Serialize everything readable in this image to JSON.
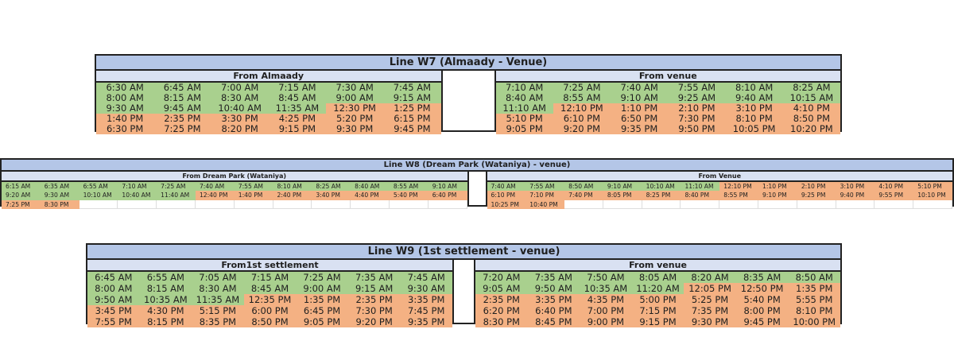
{
  "colors": {
    "am": "#a9d08e",
    "pm": "#f4b183",
    "title_bg": "#b4c6e7",
    "subheader_bg": "#d9e1f2"
  },
  "lines": [
    {
      "id": "w7",
      "title": "Line W7 (Almaady - Venue)",
      "columns": 6,
      "from_left": {
        "label": "From Almaady",
        "rows": [
          [
            "6:30 AM",
            "6:45 AM",
            "7:00 AM",
            "7:15 AM",
            "7:30 AM",
            "7:45 AM"
          ],
          [
            "8:00 AM",
            "8:15 AM",
            "8:30 AM",
            "8:45 AM",
            "9:00 AM",
            "9:15 AM"
          ],
          [
            "9:30 AM",
            "9:45 AM",
            "10:40 AM",
            "11:35 AM",
            "12:30 PM",
            "1:25 PM"
          ],
          [
            "1:40 PM",
            "2:35 PM",
            "3:30 PM",
            "4:25 PM",
            "5:20 PM",
            "6:15 PM"
          ],
          [
            "6:30 PM",
            "7:25 PM",
            "8:20 PM",
            "9:15 PM",
            "9:30 PM",
            "9:45 PM"
          ]
        ]
      },
      "from_right": {
        "label": "From venue",
        "rows": [
          [
            "7:10 AM",
            "7:25 AM",
            "7:40 AM",
            "7:55 AM",
            "8:10 AM",
            "8:25 AM"
          ],
          [
            "8:40 AM",
            "8:55 AM",
            "9:10 AM",
            "9:25 AM",
            "9:40 AM",
            "10:15 AM"
          ],
          [
            "11:10 AM",
            "12:10 PM",
            "1:10 PM",
            "2:10 PM",
            "3:10 PM",
            "4:10 PM"
          ],
          [
            "5:10 PM",
            "6:10 PM",
            "6:50 PM",
            "7:30 PM",
            "8:10 PM",
            "8:50 PM"
          ],
          [
            "9:05 PM",
            "9:20 PM",
            "9:35 PM",
            "9:50 PM",
            "10:05 PM",
            "10:20 PM"
          ]
        ]
      }
    },
    {
      "id": "w8",
      "title": "Line W8 (Dream Park (Wataniya) - venue)",
      "columns": 12,
      "from_left": {
        "label": "From Dream Park (Wataniya)",
        "rows": [
          [
            "6:15 AM",
            "6:35 AM",
            "6:55 AM",
            "7:10 AM",
            "7:25 AM",
            "7:40 AM",
            "7:55 AM",
            "8:10 AM",
            "8:25 AM",
            "8:40 AM",
            "8:55 AM",
            "9:10 AM"
          ],
          [
            "9:20 AM",
            "9:30 AM",
            "10:10 AM",
            "10:40 AM",
            "11:40 AM",
            "12:40 PM",
            "1:40 PM",
            "2:40 PM",
            "3:40 PM",
            "4:40 PM",
            "5:40 PM",
            "6:40 PM"
          ],
          [
            "7:25 PM",
            "8:30 PM",
            "",
            "",
            "",
            "",
            "",
            "",
            "",
            "",
            "",
            ""
          ]
        ]
      },
      "from_right": {
        "label": "From Venue",
        "rows": [
          [
            "7:40 AM",
            "7:55 AM",
            "8:50 AM",
            "9:10 AM",
            "10:10 AM",
            "11:10 AM",
            "12:10 PM",
            "1:10 PM",
            "2:10 PM",
            "3:10 PM",
            "4:10 PM",
            "5:10 PM"
          ],
          [
            "6:10 PM",
            "7:10 PM",
            "7:40 PM",
            "8:05 PM",
            "8:25 PM",
            "8:40 PM",
            "8:55 PM",
            "9:10 PM",
            "9:25 PM",
            "9:40 PM",
            "9:55 PM",
            "10:10 PM"
          ],
          [
            "10:25 PM",
            "10:40 PM",
            "",
            "",
            "",
            "",
            "",
            "",
            "",
            "",
            "",
            ""
          ]
        ]
      }
    },
    {
      "id": "w9",
      "title": "Line W9 (1st settlement - venue)",
      "columns": 7,
      "from_left": {
        "label": "From1st settlement",
        "rows": [
          [
            "6:45 AM",
            "6:55 AM",
            "7:05 AM",
            "7:15 AM",
            "7:25 AM",
            "7:35 AM",
            "7:45 AM"
          ],
          [
            "8:00 AM",
            "8:15 AM",
            "8:30 AM",
            "8:45 AM",
            "9:00 AM",
            "9:15 AM",
            "9:30 AM"
          ],
          [
            "9:50 AM",
            "10:35 AM",
            "11:35 AM",
            "12:35 PM",
            "1:35 PM",
            "2:35 PM",
            "3:35 PM"
          ],
          [
            "3:45 PM",
            "4:30 PM",
            "5:15 PM",
            "6:00 PM",
            "6:45 PM",
            "7:30 PM",
            "7:45 PM"
          ],
          [
            "7:55 PM",
            "8:15 PM",
            "8:35 PM",
            "8:50 PM",
            "9:05 PM",
            "9:20 PM",
            "9:35 PM"
          ]
        ]
      },
      "from_right": {
        "label": "From venue",
        "rows": [
          [
            "7:20 AM",
            "7:35 AM",
            "7:50 AM",
            "8:05 AM",
            "8:20 AM",
            "8:35 AM",
            "8:50 AM"
          ],
          [
            "9:05 AM",
            "9:50 AM",
            "10:35 AM",
            "11:20 AM",
            "12:05 PM",
            "12:50 PM",
            "1:35 PM"
          ],
          [
            "2:35 PM",
            "3:35 PM",
            "4:35 PM",
            "5:00 PM",
            "5:25 PM",
            "5:40 PM",
            "5:55 PM"
          ],
          [
            "6:20 PM",
            "6:40 PM",
            "7:00 PM",
            "7:15 PM",
            "7:35 PM",
            "8:00 PM",
            "8:10 PM"
          ],
          [
            "8:30 PM",
            "8:45 PM",
            "9:00 PM",
            "9:15 PM",
            "9:30 PM",
            "9:45 PM",
            "10:00 PM"
          ]
        ]
      }
    }
  ]
}
